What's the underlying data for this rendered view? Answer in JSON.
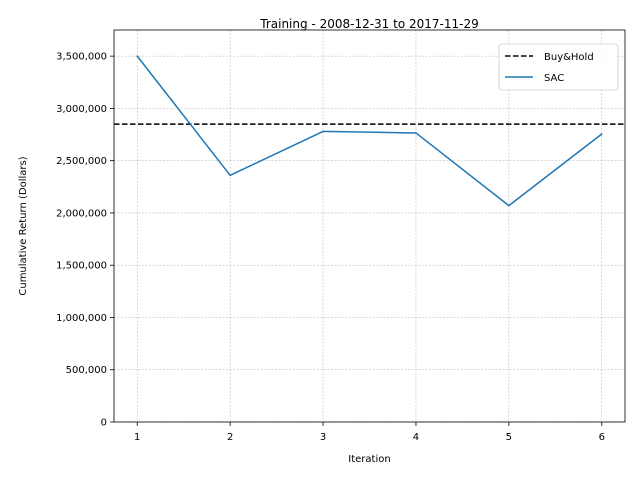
{
  "chart_data": {
    "type": "line",
    "title": "Training - 2008-12-31 to 2017-11-29",
    "xlabel": "Iteration",
    "ylabel": "Cumulative Return (Dollars)",
    "xlim": [
      0.75,
      6.25
    ],
    "ylim": [
      0,
      3750000
    ],
    "xticks": [
      1,
      2,
      3,
      4,
      5,
      6
    ],
    "xtick_labels": [
      "1",
      "2",
      "3",
      "4",
      "5",
      "6"
    ],
    "yticks": [
      0,
      500000,
      1000000,
      1500000,
      2000000,
      2500000,
      3000000,
      3500000
    ],
    "ytick_labels": [
      "0",
      "500,000",
      "1,000,000",
      "1,500,000",
      "2,000,000",
      "2,500,000",
      "3,000,000",
      "3,500,000"
    ],
    "grid": true,
    "legend_position": "upper-right",
    "series": [
      {
        "name": "Buy&Hold",
        "style": "dashed",
        "color": "#000000",
        "kind": "horizontal-line",
        "value": 2850000
      },
      {
        "name": "SAC",
        "style": "solid",
        "color": "#1f77b4",
        "x": [
          1,
          2,
          3,
          4,
          5,
          6
        ],
        "values": [
          3500000,
          2360000,
          2780000,
          2765000,
          2070000,
          2755000
        ]
      }
    ]
  }
}
